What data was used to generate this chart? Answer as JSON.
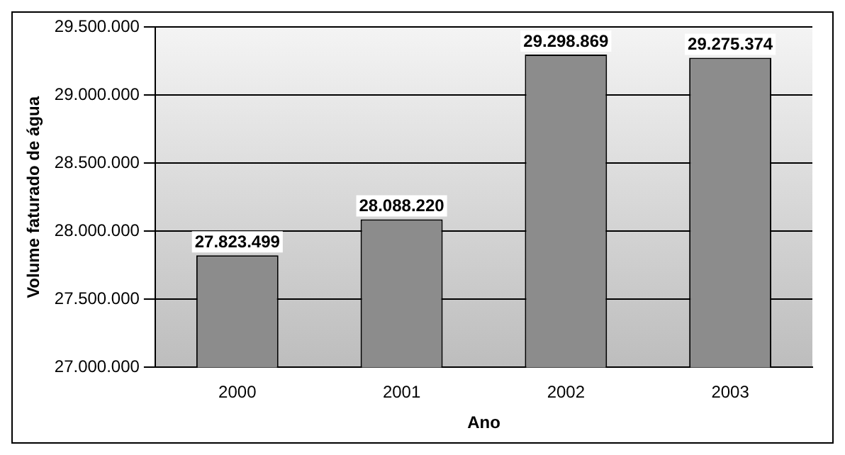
{
  "chart_data": {
    "type": "bar",
    "xlabel": "Ano",
    "ylabel": "Volume faturado de água",
    "categories": [
      "2000",
      "2001",
      "2002",
      "2003"
    ],
    "values": [
      27823499,
      28088220,
      29298869,
      29275374
    ],
    "value_labels": [
      "27.823.499",
      "28.088.220",
      "29.298.869",
      "29.275.374"
    ],
    "color": "#8c8c8c",
    "ylim": [
      27000000,
      29500000
    ],
    "yticks": [
      {
        "value": 27000000,
        "label": "27.000.000"
      },
      {
        "value": 27500000,
        "label": "27.500.000"
      },
      {
        "value": 28000000,
        "label": "28.000.000"
      },
      {
        "value": 28500000,
        "label": "28.500.000"
      },
      {
        "value": 29000000,
        "label": "29.000.000"
      },
      {
        "value": 29500000,
        "label": "29.500.000"
      }
    ],
    "grid": "y",
    "legend": false
  }
}
